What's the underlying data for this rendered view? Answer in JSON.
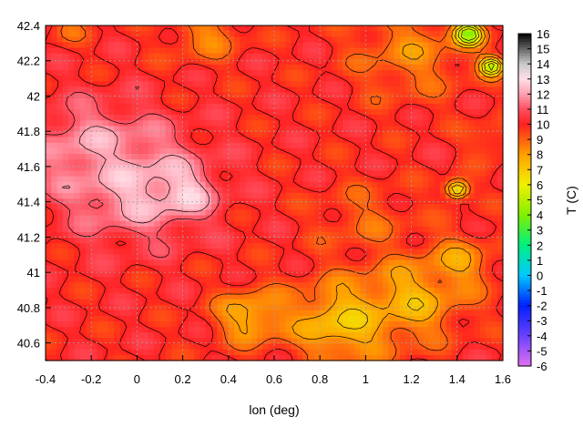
{
  "chart_data": {
    "type": "heatmap",
    "title": "",
    "xlabel": "lon (deg)",
    "ylabel": "",
    "xlim": [
      -0.4,
      1.6
    ],
    "ylim": [
      40.5,
      42.4
    ],
    "x_ticks": [
      "-0.4",
      "-0.2",
      "0",
      "0.2",
      "0.4",
      "0.6",
      "0.8",
      "1",
      "1.2",
      "1.4",
      "1.6"
    ],
    "y_ticks": [
      "40.6",
      "40.8",
      "41",
      "41.2",
      "41.4",
      "41.6",
      "41.8",
      "42",
      "42.2",
      "42.4"
    ],
    "grid": true,
    "colorbar": {
      "label": "T (C)",
      "min": -6,
      "max": 16,
      "ticks": [
        "16",
        "15",
        "14",
        "13",
        "12",
        "11",
        "10",
        "9",
        "8",
        "7",
        "6",
        "5",
        "4",
        "3",
        "2",
        "1",
        "0",
        "-1",
        "-2",
        "-3",
        "-4",
        "-5",
        "-6"
      ],
      "stops": [
        {
          "v": -6,
          "color": "#e070f0"
        },
        {
          "v": -4,
          "color": "#6a40ff"
        },
        {
          "v": -2,
          "color": "#0020ff"
        },
        {
          "v": 0,
          "color": "#00c8ff"
        },
        {
          "v": 2,
          "color": "#00f080"
        },
        {
          "v": 4,
          "color": "#80f000"
        },
        {
          "v": 6,
          "color": "#f0f000"
        },
        {
          "v": 8,
          "color": "#ffa000"
        },
        {
          "v": 10,
          "color": "#ff2020"
        },
        {
          "v": 11,
          "color": "#ff5060"
        },
        {
          "v": 12,
          "color": "#ffa0b0"
        },
        {
          "v": 13,
          "color": "#ffe0e8"
        },
        {
          "v": 14,
          "color": "#c8c8c8"
        },
        {
          "v": 16,
          "color": "#000000"
        }
      ]
    },
    "regions": [
      {
        "lon": 0.0,
        "lat": 41.5,
        "T": 12.5,
        "spread": 0.3
      },
      {
        "lon": 0.2,
        "lat": 41.45,
        "T": 12.8,
        "spread": 0.12
      },
      {
        "lon": -0.2,
        "lat": 41.7,
        "T": 12.0,
        "spread": 0.25
      },
      {
        "lon": 0.9,
        "lat": 40.72,
        "T": 7.0,
        "spread": 0.22
      },
      {
        "lon": 1.2,
        "lat": 40.85,
        "T": 7.5,
        "spread": 0.22
      },
      {
        "lon": 1.4,
        "lat": 41.05,
        "T": 8.0,
        "spread": 0.15
      },
      {
        "lon": 0.5,
        "lat": 40.75,
        "T": 7.5,
        "spread": 0.15
      },
      {
        "lon": 1.2,
        "lat": 42.25,
        "T": 8.5,
        "spread": 0.25
      },
      {
        "lon": 1.45,
        "lat": 42.35,
        "T": 4.0,
        "spread": 0.06
      },
      {
        "lon": 1.55,
        "lat": 42.17,
        "T": 4.5,
        "spread": 0.05
      },
      {
        "lon": 1.4,
        "lat": 41.47,
        "T": 5.0,
        "spread": 0.05
      },
      {
        "lon": 1.0,
        "lat": 41.3,
        "T": 9.0,
        "spread": 0.2
      },
      {
        "lon": 0.3,
        "lat": 42.35,
        "T": 8.5,
        "spread": 0.15
      },
      {
        "lon": -0.3,
        "lat": 42.38,
        "T": 9.0,
        "spread": 0.08
      },
      {
        "lon": 1.55,
        "lat": 41.75,
        "T": 9.0,
        "spread": 0.1
      }
    ]
  }
}
